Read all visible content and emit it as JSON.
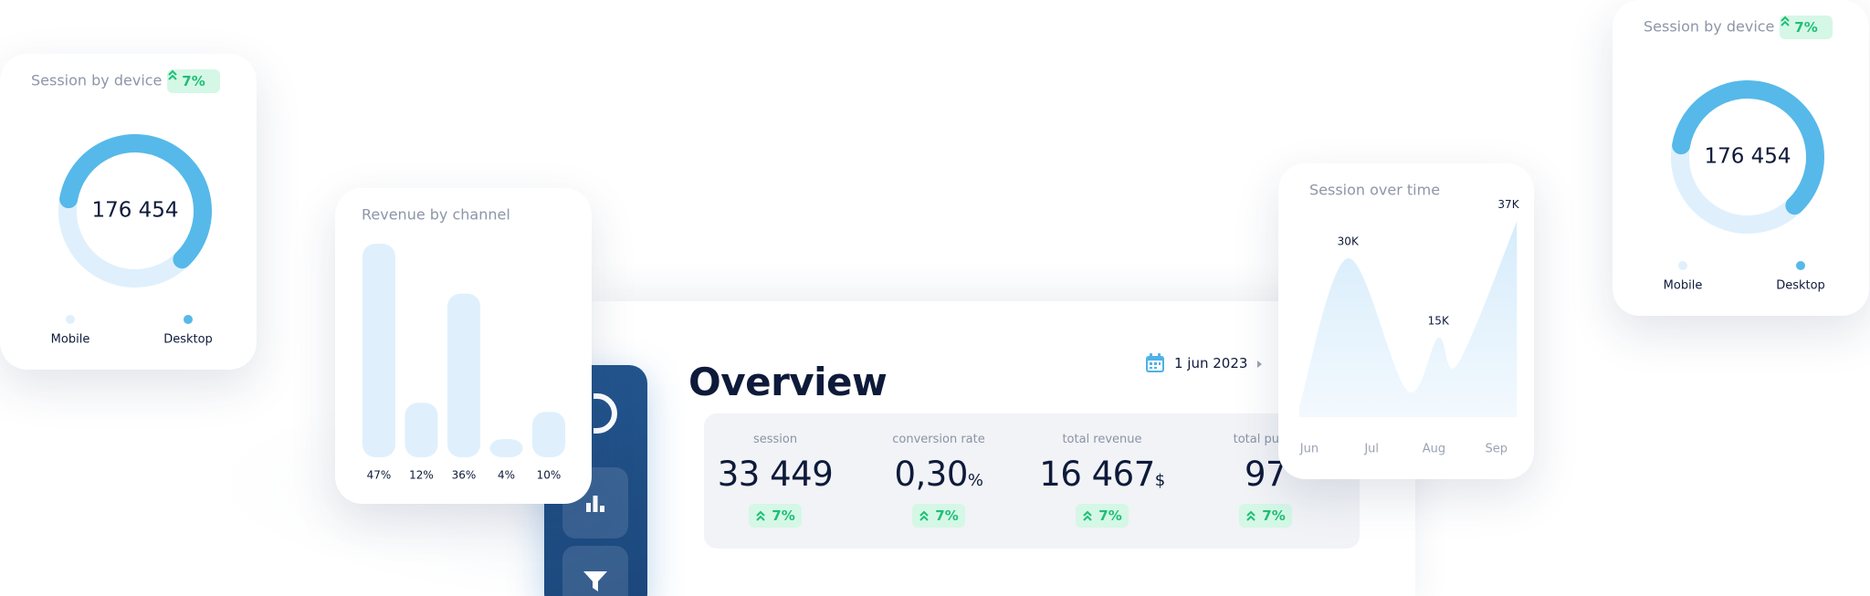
{
  "chart_data": [
    {
      "type": "donut",
      "title": "Session by device",
      "badge": "7%",
      "center_label": "176 454",
      "categories": [
        "Mobile",
        "Desktop"
      ],
      "values": [
        40,
        60
      ],
      "colors": [
        "#dff0fc",
        "#56b9e9"
      ]
    },
    {
      "type": "bar",
      "title": "Revenue by channel",
      "values": [
        47,
        12,
        36,
        4,
        10
      ],
      "value_labels": [
        "47%",
        "12%",
        "36%",
        "4%",
        "10%"
      ],
      "ylim": [
        0,
        47
      ],
      "color": "#dff0fc"
    },
    {
      "type": "area",
      "title": "Session over time",
      "x": [
        -0.16,
        0.62,
        1.57,
        2.07,
        2.38,
        3.33
      ],
      "values": [
        2000,
        30000,
        5000,
        15000,
        10000,
        37000
      ],
      "value_labels": [
        null,
        "30K",
        null,
        "15K",
        null,
        "37K"
      ],
      "xlim": [
        -0.16,
        3.37
      ],
      "xticks": [
        {
          "value": 0,
          "label": "Jun"
        },
        {
          "value": 1,
          "label": "Jul"
        },
        {
          "value": 2,
          "label": "Aug"
        },
        {
          "value": 3,
          "label": "Sep"
        }
      ],
      "ylim": [
        0,
        40000
      ],
      "color": "#d6ecfb"
    },
    {
      "type": "donut",
      "title": "Session by device",
      "badge": "7%",
      "center_label": "176 454",
      "categories": [
        "Mobile",
        "Desktop"
      ],
      "values": [
        40,
        60
      ],
      "colors": [
        "#dff0fc",
        "#56b9e9"
      ]
    }
  ],
  "overview": {
    "title": "Overview",
    "date": "1 jun 2023",
    "metrics": [
      {
        "label": "session",
        "value": "33 449",
        "badge": "7%"
      },
      {
        "label": "conversion rate",
        "value": "0,30",
        "unit": "%",
        "badge": "7%"
      },
      {
        "label": "total revenue",
        "value": "16 467",
        "unit": "$",
        "badge": "7%"
      },
      {
        "label": "total purch",
        "value": "97",
        "badge": "7%"
      }
    ]
  }
}
